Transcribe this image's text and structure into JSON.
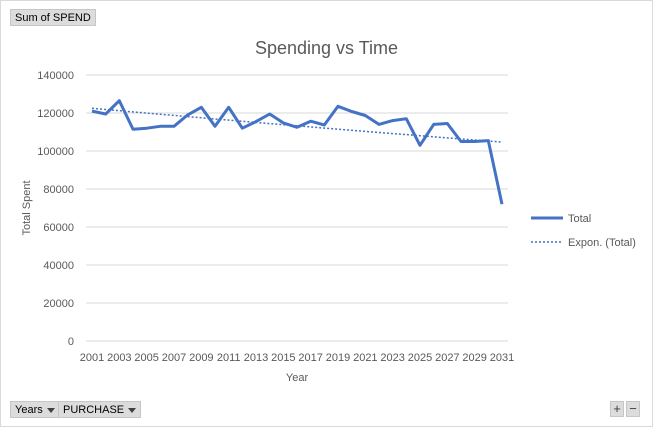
{
  "pivot": {
    "value_field": "Sum of SPEND",
    "axis_fields": [
      "Years",
      "PURCHASE"
    ],
    "zoom_in": "+",
    "zoom_out": "−"
  },
  "chart_data": {
    "type": "line",
    "title": "Spending vs Time",
    "xlabel": "Year",
    "ylabel": "Total Spent",
    "ylim": [
      0,
      140000
    ],
    "yticks": [
      0,
      20000,
      40000,
      60000,
      80000,
      100000,
      120000,
      140000
    ],
    "x": [
      2001,
      2002,
      2003,
      2004,
      2005,
      2006,
      2007,
      2008,
      2009,
      2010,
      2011,
      2012,
      2013,
      2014,
      2015,
      2016,
      2017,
      2018,
      2019,
      2020,
      2021,
      2022,
      2023,
      2024,
      2025,
      2026,
      2027,
      2028,
      2029,
      2030,
      2031
    ],
    "xtick_labels": [
      "2001",
      "2003",
      "2005",
      "2007",
      "2009",
      "2011",
      "2013",
      "2015",
      "2017",
      "2019",
      "2021",
      "2023",
      "2025",
      "2027",
      "2029",
      "2031"
    ],
    "series": [
      {
        "name": "Total",
        "color": "#4472c4",
        "values": [
          121000,
          119500,
          126500,
          111500,
          112000,
          113000,
          113000,
          119000,
          123000,
          113000,
          123000,
          112000,
          115500,
          119500,
          114800,
          112500,
          115700,
          113700,
          123500,
          120800,
          118700,
          114000,
          116000,
          117000,
          103000,
          114000,
          114500,
          105000,
          105000,
          105500,
          72000
        ]
      }
    ],
    "trendline": {
      "name": "Expon. (Total)",
      "kind": "exponential",
      "color": "#4472c4",
      "start": 122500,
      "end": 104700
    },
    "grid": true,
    "legend_position": "right"
  }
}
